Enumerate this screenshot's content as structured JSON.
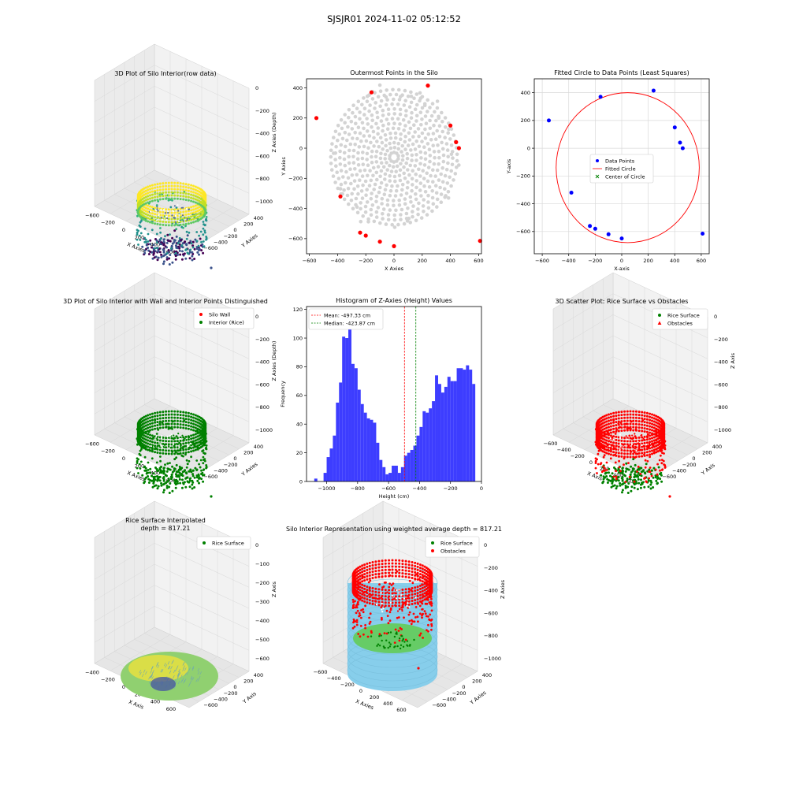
{
  "figure": {
    "title": "SJSJR01 2024-11-02 05:12:52"
  },
  "chart_data": [
    {
      "type": "scatter3d",
      "title": "3D Plot of Silo Interior(row data)",
      "xlabel": "X Axies",
      "ylabel": "Y Axies",
      "zlabel": "Z Axies (Depth)",
      "xticks": [
        "-600",
        "-200",
        "0",
        "200",
        "400",
        "600"
      ],
      "yticks": [
        "400",
        "200",
        "0",
        "-200",
        "-400",
        "-600"
      ],
      "zticks": [
        "0",
        "-200",
        "-400",
        "-600",
        "-800",
        "-1000"
      ],
      "colormap": "viridis",
      "colors": {
        "ring_top": "#fde725",
        "ring_mid": "#5ec962",
        "body": "#21918c",
        "floor": "#440154"
      },
      "silo_radius_cm": 450,
      "wall_top_z": -100,
      "floor_z": -1000
    },
    {
      "type": "scatter",
      "title": "Outermost Points in the Silo",
      "xlabel": "X Axies",
      "ylabel": "Y Axies",
      "xticks": [
        -600,
        -400,
        -200,
        0,
        200,
        400,
        600
      ],
      "yticks": [
        400,
        200,
        0,
        -200,
        -400,
        -600
      ],
      "xlim": [
        -620,
        620
      ],
      "ylim": [
        -700,
        460
      ],
      "grid": false,
      "cloud_color": "#d3d3d3",
      "outer_color": "#ff0000",
      "outer_points": [
        [
          -550,
          200
        ],
        [
          -380,
          -320
        ],
        [
          -240,
          -560
        ],
        [
          -200,
          -580
        ],
        [
          -160,
          370
        ],
        [
          -100,
          -620
        ],
        [
          0,
          -650
        ],
        [
          240,
          415
        ],
        [
          400,
          150
        ],
        [
          440,
          40
        ],
        [
          460,
          0
        ],
        [
          610,
          -615
        ]
      ]
    },
    {
      "type": "scatter",
      "title": "Fitted Circle to Data Points (Least Squares)",
      "xlabel": "X-axis",
      "ylabel": "Y-axis",
      "xticks": [
        -600,
        -400,
        -200,
        0,
        200,
        400,
        600
      ],
      "yticks": [
        400,
        200,
        0,
        -200,
        -400,
        -600
      ],
      "xlim": [
        -660,
        660
      ],
      "ylim": [
        -760,
        500
      ],
      "grid": true,
      "legend": [
        "Data Points",
        "Fitted Circle",
        "Center of Circle"
      ],
      "legend_position": "center-right",
      "point_color": "#0000ff",
      "circle_color": "#ff0000",
      "center_color": "#008000",
      "points": [
        [
          -550,
          200
        ],
        [
          -380,
          -320
        ],
        [
          -240,
          -560
        ],
        [
          -200,
          -580
        ],
        [
          -160,
          370
        ],
        [
          -100,
          -620
        ],
        [
          0,
          -650
        ],
        [
          240,
          415
        ],
        [
          400,
          150
        ],
        [
          440,
          40
        ],
        [
          460,
          0
        ],
        [
          610,
          -615
        ]
      ],
      "circle": {
        "cx": 45,
        "cy": -140,
        "r": 540
      }
    },
    {
      "type": "scatter3d",
      "title": "3D Plot of Silo Interior with Wall and Interior Points Distinguished",
      "xlabel": "X Axies",
      "ylabel": "Y Axies",
      "zlabel": "Z Axies (Depth)",
      "xticks": [
        "-600",
        "-200",
        "0",
        "200",
        "400",
        "600"
      ],
      "yticks": [
        "400",
        "200",
        "0",
        "-200",
        "-400",
        "-600"
      ],
      "zticks": [
        "0",
        "-200",
        "-400",
        "-600",
        "-800",
        "-1000"
      ],
      "legend": [
        "Silo Wall",
        "Interior (Rice)"
      ],
      "legend_position": "top-right",
      "colors": {
        "wall": "#ff0000",
        "interior": "#008000"
      }
    },
    {
      "type": "bar",
      "title": "Histogram of Z-Axies (Height) Values",
      "xlabel": "Height (cm)",
      "ylabel": "Frequency",
      "xticks": [
        -1000,
        -800,
        -600,
        -400,
        -200,
        0
      ],
      "yticks": [
        0,
        20,
        40,
        60,
        80,
        100,
        120
      ],
      "xlim": [
        -1130,
        0
      ],
      "ylim": [
        0,
        122
      ],
      "bin_start": -1080,
      "bin_width": 20,
      "values": [
        2,
        0,
        0,
        6,
        17,
        23,
        32,
        55,
        69,
        101,
        100,
        109,
        82,
        79,
        64,
        54,
        48,
        44,
        43,
        41,
        27,
        15,
        10,
        5,
        6,
        11,
        11,
        6,
        10,
        18,
        20,
        22,
        25,
        32,
        38,
        49,
        48,
        51,
        56,
        74,
        68,
        62,
        66,
        73,
        70,
        70,
        79,
        79,
        78,
        81,
        78,
        68
      ],
      "bar_color": "#3333ff",
      "legend": [
        "Mean: -497.33 cm",
        "Median: -423.87 cm"
      ],
      "legend_position": "top-left",
      "mean": -497.33,
      "median": -423.87,
      "mean_color": "#ff0000",
      "median_color": "#008000"
    },
    {
      "type": "scatter3d",
      "title": "3D Scatter Plot: Rice Surface vs Obstacles",
      "xlabel": "X Axis",
      "ylabel": "Y Axis",
      "zlabel": "Z Axis",
      "xticks": [
        "-600",
        "-400",
        "-200",
        "0",
        "200",
        "400",
        "600"
      ],
      "yticks": [
        "400",
        "200",
        "0",
        "-200",
        "-400",
        "-600"
      ],
      "zticks": [
        "0",
        "-200",
        "-400",
        "-600",
        "-800",
        "-1000"
      ],
      "legend": [
        "Rice Surface",
        "Obstacles"
      ],
      "legend_position": "top-right",
      "colors": {
        "rice": "#008000",
        "obstacles": "#ff0000"
      }
    },
    {
      "type": "surface3d",
      "title": "Rice Surface Interpolated",
      "subtitle": "depth = 817.21",
      "xlabel": "X Axis",
      "ylabel": "Y Axis",
      "zlabel": "Z Axis",
      "xticks": [
        "-400",
        "-200",
        "0",
        "200",
        "400",
        "600"
      ],
      "yticks": [
        "400",
        "200",
        "0",
        "-200",
        "-400",
        "-600"
      ],
      "zticks": [
        "0",
        "-100",
        "-200",
        "-300",
        "-400",
        "-500",
        "-600"
      ],
      "legend": [
        "Rice Surface"
      ],
      "legend_position": "top-right",
      "colors": {
        "legend_marker": "#008000",
        "surface_low": "#90d070",
        "surface_high": "#e8e040",
        "center": "#4a5aa0"
      }
    },
    {
      "type": "scatter3d",
      "title": "Silo Interior Representation using weighted average depth = 817.21",
      "xlabel": "X Axies",
      "ylabel": "Y Axies",
      "zlabel": "Z Axies",
      "xticks": [
        "-600",
        "-400",
        "-200",
        "0",
        "200",
        "400",
        "600"
      ],
      "yticks": [
        "400",
        "200",
        "0",
        "-200",
        "-400",
        "-600"
      ],
      "zticks": [
        "0",
        "-200",
        "-400",
        "-600",
        "-800",
        "-1000"
      ],
      "legend": [
        "Rice Surface",
        "Obstacles"
      ],
      "legend_position": "top-right",
      "colors": {
        "cylinder": "#87ceeb",
        "rice": "#66cc66",
        "obstacles": "#ff0000",
        "rice_marker": "#008000"
      }
    }
  ]
}
